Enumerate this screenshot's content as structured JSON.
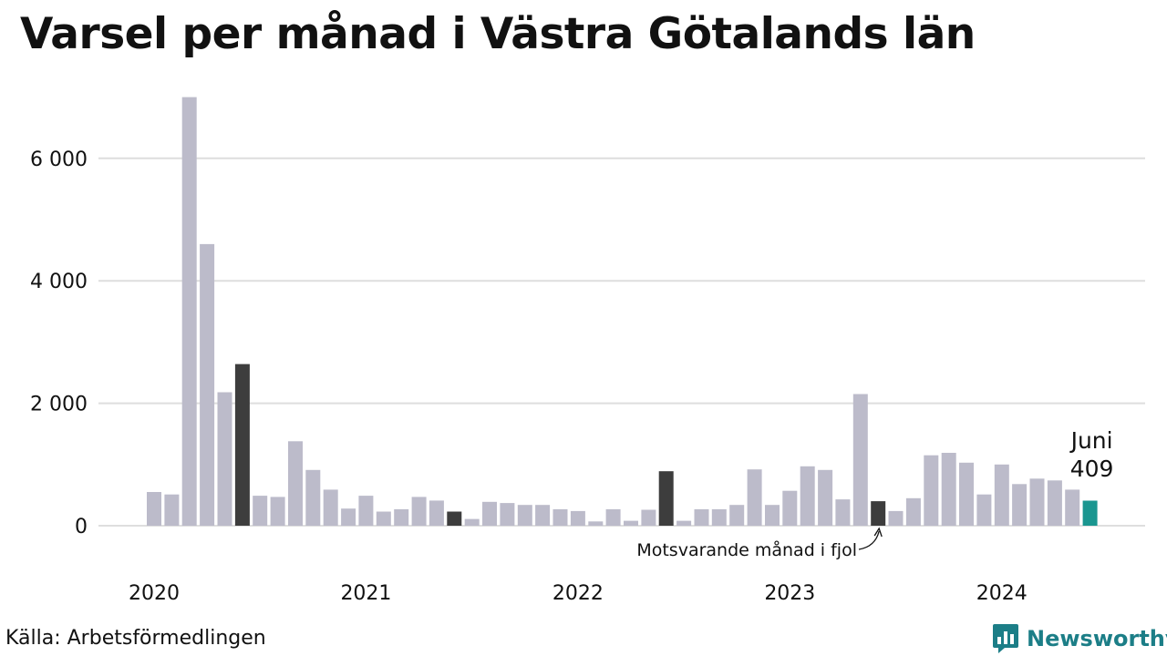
{
  "title": "Varsel per månad i Västra Götalands län",
  "source": "Källa: Arbetsförmedlingen",
  "brand": {
    "name": "Newsworthy",
    "icon": "newsworthy-logo-icon"
  },
  "colors": {
    "bar": "#bcbbca",
    "highlight": "#3d3d3d",
    "current": "#1a9690",
    "grid": "#dedede",
    "brand": "#1c7e87"
  },
  "chart_data": {
    "type": "bar",
    "title": "Varsel per månad i Västra Götalands län",
    "xlabel": "",
    "ylabel": "",
    "ylim": [
      0,
      7000
    ],
    "yticks": [
      0,
      2000,
      4000,
      6000
    ],
    "ytick_labels": [
      "0",
      "2 000",
      "4 000",
      "6 000"
    ],
    "year_labels": [
      "2020",
      "2021",
      "2022",
      "2023",
      "2024"
    ],
    "grid": true,
    "months": [
      "2020-01",
      "2020-02",
      "2020-03",
      "2020-04",
      "2020-05",
      "2020-06",
      "2020-07",
      "2020-08",
      "2020-09",
      "2020-10",
      "2020-11",
      "2020-12",
      "2021-01",
      "2021-02",
      "2021-03",
      "2021-04",
      "2021-05",
      "2021-06",
      "2021-07",
      "2021-08",
      "2021-09",
      "2021-10",
      "2021-11",
      "2021-12",
      "2022-01",
      "2022-02",
      "2022-03",
      "2022-04",
      "2022-05",
      "2022-06",
      "2022-07",
      "2022-08",
      "2022-09",
      "2022-10",
      "2022-11",
      "2022-12",
      "2023-01",
      "2023-02",
      "2023-03",
      "2023-04",
      "2023-05",
      "2023-06",
      "2023-07",
      "2023-08",
      "2023-09",
      "2023-10",
      "2023-11",
      "2023-12",
      "2024-01",
      "2024-02",
      "2024-03",
      "2024-04",
      "2024-05",
      "2024-06"
    ],
    "values": [
      550,
      510,
      7000,
      4600,
      2180,
      2640,
      490,
      470,
      1380,
      910,
      590,
      280,
      490,
      230,
      270,
      470,
      410,
      230,
      110,
      390,
      370,
      340,
      340,
      270,
      240,
      70,
      270,
      80,
      260,
      890,
      80,
      270,
      270,
      340,
      920,
      340,
      570,
      970,
      910,
      430,
      2150,
      400,
      240,
      450,
      1150,
      1190,
      1030,
      510,
      1000,
      680,
      770,
      740,
      590,
      409
    ],
    "highlight_indices": [
      5,
      17,
      29,
      41
    ],
    "current_index": 53,
    "annotations": [
      {
        "text": "Juni",
        "value_text": "409",
        "index": 53
      },
      {
        "text": "Motsvarande månad i fjol",
        "index": 41
      }
    ]
  }
}
